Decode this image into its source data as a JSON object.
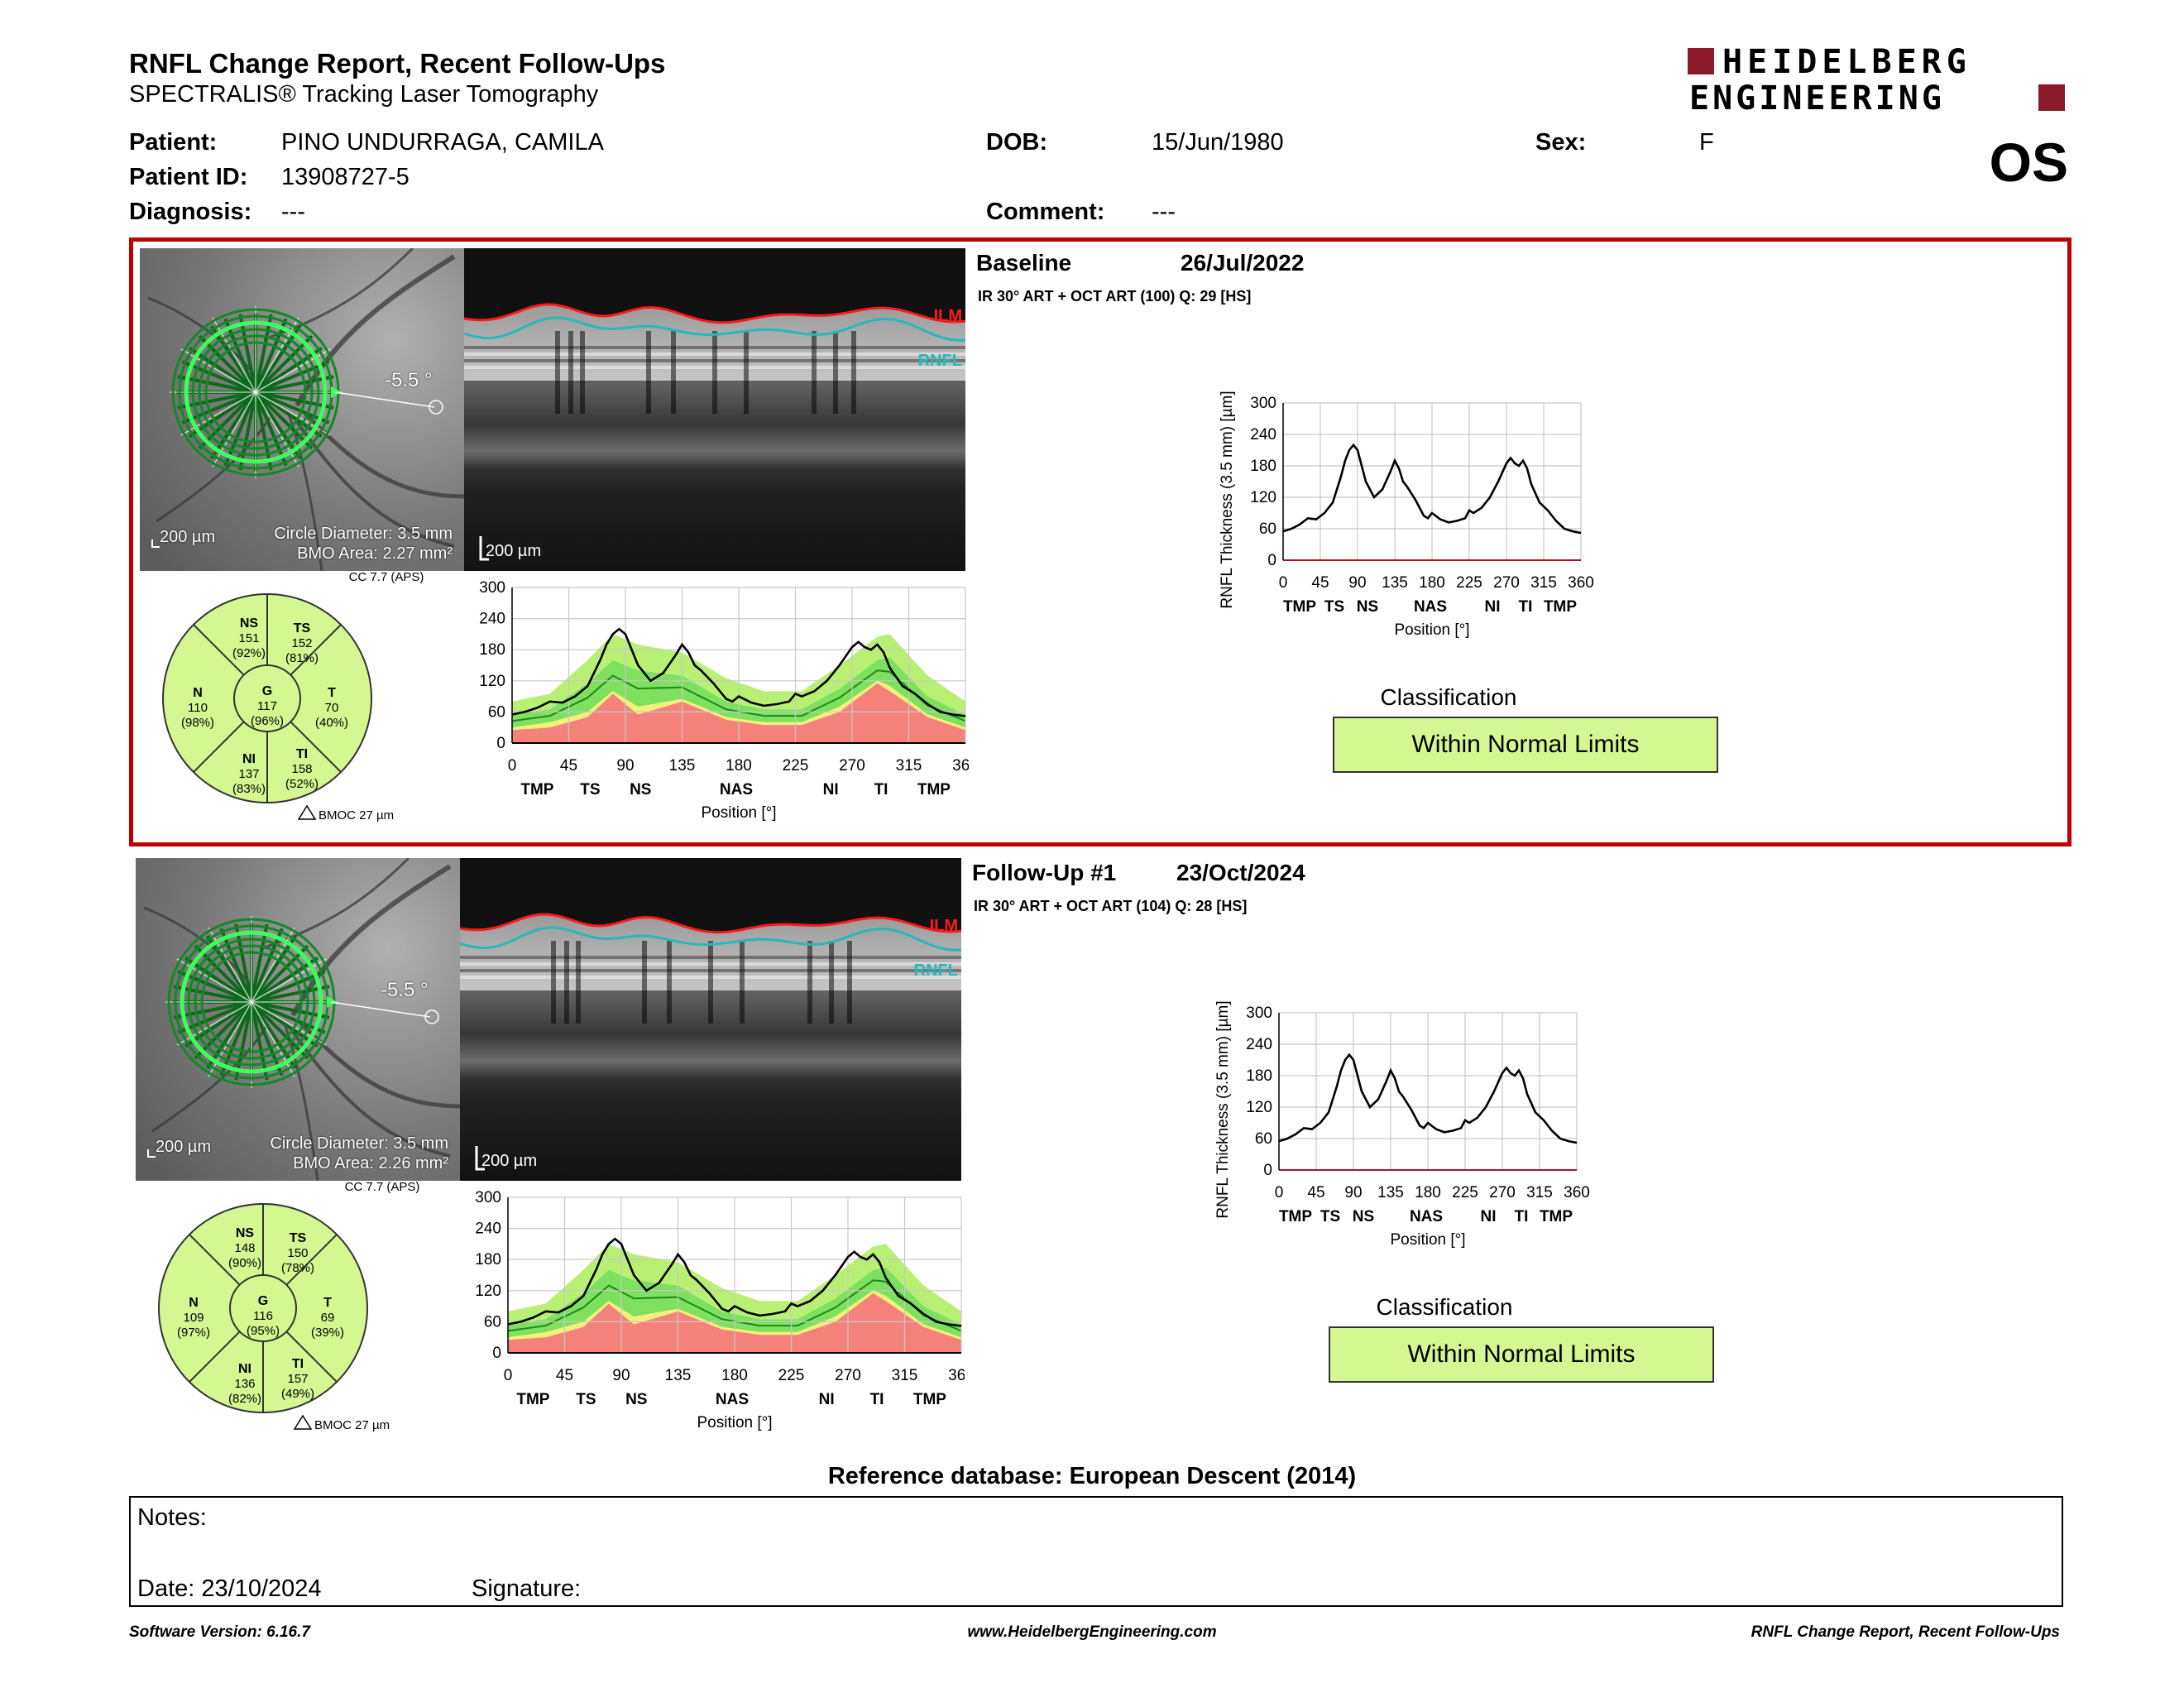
{
  "header": {
    "title": "RNFL Change Report, Recent Follow-Ups",
    "subtitle": "SPECTRALIS® Tracking Laser Tomography",
    "logo_line1": "HEIDELBERG",
    "logo_line2": "ENGINEERING",
    "eye": "OS"
  },
  "patient": {
    "patient_label": "Patient:",
    "patient_value": "PINO UNDURRAGA, CAMILA",
    "id_label": "Patient ID:",
    "id_value": "13908727-5",
    "diagnosis_label": "Diagnosis:",
    "diagnosis_value": "---",
    "dob_label": "DOB:",
    "dob_value": "15/Jun/1980",
    "comment_label": "Comment:",
    "comment_value": "---",
    "sex_label": "Sex:",
    "sex_value": "F"
  },
  "scans": [
    {
      "name": "Baseline",
      "date": "26/Jul/2022",
      "params": "IR 30° ART + OCT ART (100) Q: 29 [HS]",
      "angle": "-5.5 °",
      "scale_fundus": "200 µm",
      "circle_diameter": "Circle Diameter: 3.5 mm",
      "bmo_area": "BMO Area: 2.27 mm²",
      "scale_oct": "200 µm",
      "ilm": "ILM",
      "rnfl": "RNFL",
      "cc": "CC 7.7 (APS)",
      "bmoc": "BMOC 27 µm",
      "sectors": {
        "NS": {
          "label": "NS",
          "value": "151",
          "pct": "(92%)"
        },
        "TS": {
          "label": "TS",
          "value": "152",
          "pct": "(81%)"
        },
        "N": {
          "label": "N",
          "value": "110",
          "pct": "(98%)"
        },
        "G": {
          "label": "G",
          "value": "117",
          "pct": "(96%)"
        },
        "T": {
          "label": "T",
          "value": "70",
          "pct": "(40%)"
        },
        "NI": {
          "label": "NI",
          "value": "137",
          "pct": "(83%)"
        },
        "TI": {
          "label": "TI",
          "value": "158",
          "pct": "(52%)"
        }
      },
      "classification_label": "Classification",
      "classification": "Within Normal Limits"
    },
    {
      "name": "Follow-Up #1",
      "date": "23/Oct/2024",
      "params": "IR 30° ART + OCT ART (104) Q: 28 [HS]",
      "angle": "-5.5 °",
      "scale_fundus": "200 µm",
      "circle_diameter": "Circle Diameter: 3.5 mm",
      "bmo_area": "BMO Area: 2.26 mm²",
      "scale_oct": "200 µm",
      "ilm": "ILM",
      "rnfl": "RNFL",
      "cc": "CC 7.7 (APS)",
      "bmoc": "BMOC 27 µm",
      "sectors": {
        "NS": {
          "label": "NS",
          "value": "148",
          "pct": "(90%)"
        },
        "TS": {
          "label": "TS",
          "value": "150",
          "pct": "(78%)"
        },
        "N": {
          "label": "N",
          "value": "109",
          "pct": "(97%)"
        },
        "G": {
          "label": "G",
          "value": "116",
          "pct": "(95%)"
        },
        "T": {
          "label": "T",
          "value": "69",
          "pct": "(39%)"
        },
        "NI": {
          "label": "NI",
          "value": "136",
          "pct": "(82%)"
        },
        "TI": {
          "label": "TI",
          "value": "157",
          "pct": "(49%)"
        }
      },
      "classification_label": "Classification",
      "classification": "Within Normal Limits"
    }
  ],
  "chart_data": [
    {
      "type": "line",
      "id": "thickness-profile",
      "ylabel": "RNFL Thickness (3.5 mm) [µm]",
      "xlabel": "Position [°]",
      "ylim": [
        0,
        300
      ],
      "xlim": [
        0,
        360
      ],
      "xticks": [
        0,
        45,
        90,
        135,
        180,
        225,
        270,
        315,
        360
      ],
      "yticks": [
        0,
        60,
        120,
        180,
        240,
        300
      ],
      "sector_labels": [
        {
          "pos": 20,
          "label": "TMP"
        },
        {
          "pos": 62,
          "label": "TS"
        },
        {
          "pos": 102,
          "label": "NS"
        },
        {
          "pos": 178,
          "label": "NAS"
        },
        {
          "pos": 253,
          "label": "NI"
        },
        {
          "pos": 293,
          "label": "TI"
        },
        {
          "pos": 335,
          "label": "TMP"
        }
      ],
      "x": [
        0,
        10,
        20,
        30,
        40,
        50,
        60,
        70,
        75,
        80,
        85,
        90,
        95,
        100,
        110,
        120,
        130,
        135,
        140,
        145,
        150,
        160,
        170,
        175,
        180,
        190,
        200,
        210,
        220,
        225,
        230,
        240,
        250,
        260,
        270,
        275,
        280,
        285,
        290,
        295,
        300,
        310,
        320,
        330,
        340,
        350,
        360
      ],
      "series": [
        {
          "values": [
            55,
            60,
            68,
            80,
            78,
            90,
            110,
            160,
            190,
            210,
            220,
            210,
            180,
            150,
            120,
            135,
            170,
            190,
            175,
            150,
            140,
            115,
            85,
            80,
            90,
            78,
            72,
            75,
            80,
            95,
            90,
            100,
            120,
            150,
            185,
            195,
            185,
            180,
            190,
            175,
            145,
            110,
            95,
            75,
            60,
            55,
            52
          ]
        }
      ],
      "normal_percentiles": {
        "x": [
          0,
          30,
          60,
          80,
          100,
          135,
          170,
          200,
          230,
          260,
          290,
          300,
          330,
          360
        ],
        "p99": [
          80,
          95,
          160,
          210,
          190,
          175,
          125,
          100,
          100,
          150,
          205,
          210,
          130,
          80
        ],
        "p95": [
          55,
          65,
          115,
          160,
          140,
          130,
          80,
          65,
          65,
          105,
          160,
          165,
          90,
          55
        ],
        "p5": [
          30,
          40,
          60,
          100,
          70,
          85,
          50,
          40,
          40,
          70,
          120,
          110,
          55,
          30
        ],
        "p1": [
          25,
          30,
          50,
          95,
          55,
          80,
          45,
          35,
          35,
          60,
          115,
          100,
          50,
          25
        ]
      }
    }
  ],
  "refdb": "Reference database: European Descent (2014)",
  "notes": {
    "notes_label": "Notes:",
    "date_label": "Date: 23/10/2024",
    "signature_label": "Signature:"
  },
  "footer": {
    "left": "Software Version: 6.16.7",
    "center": "www.HeidelbergEngineering.com",
    "right": "RNFL Change Report, Recent Follow-Ups"
  }
}
